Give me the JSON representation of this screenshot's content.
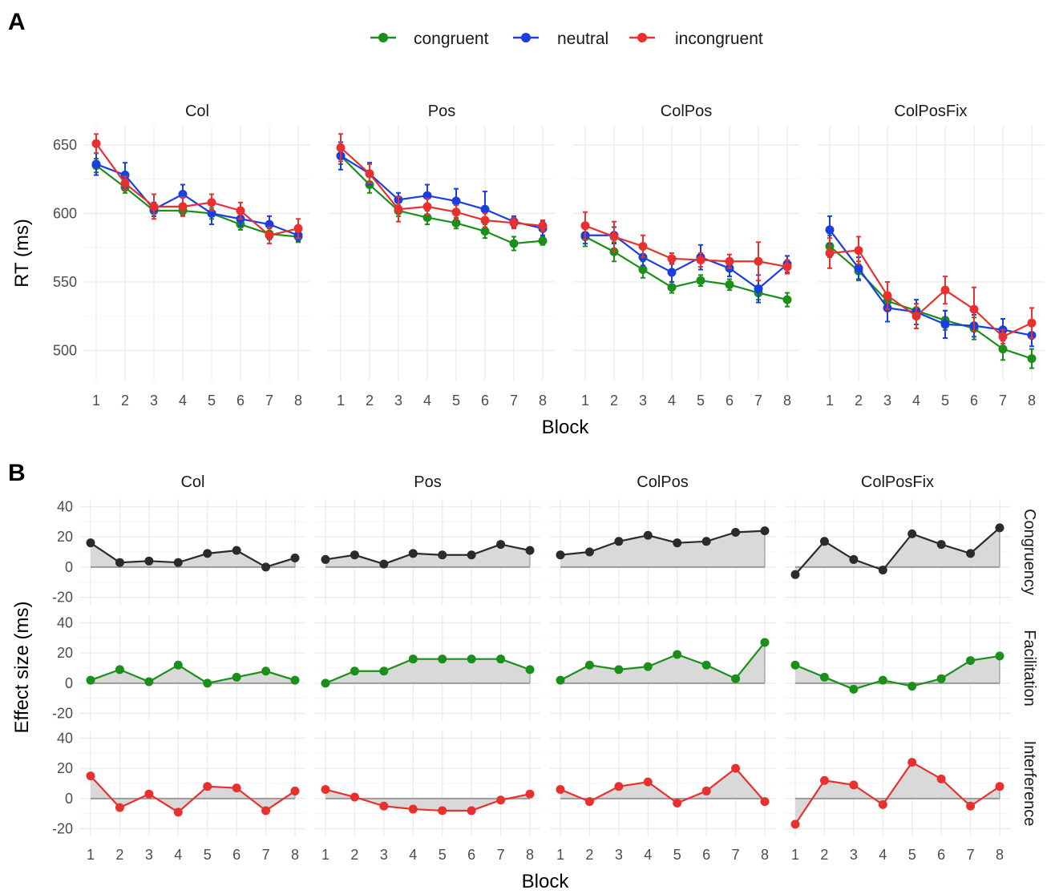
{
  "panels": {
    "a_label": "A",
    "b_label": "B"
  },
  "legend": [
    {
      "label": "congruent",
      "color": "#1a8f1a"
    },
    {
      "label": "neutral",
      "color": "#1a3fe0"
    },
    {
      "label": "incongruent",
      "color": "#e8312f"
    }
  ],
  "chart_data": [
    {
      "id": "A",
      "type": "line",
      "xlabel": "Block",
      "ylabel": "RT (ms)",
      "ylim": [
        478,
        664
      ],
      "yticks": [
        500,
        550,
        600,
        650
      ],
      "x": [
        1,
        2,
        3,
        4,
        5,
        6,
        7,
        8
      ],
      "facets": [
        "Col",
        "Pos",
        "ColPos",
        "ColPosFix"
      ],
      "grid": true,
      "legend_position": "top",
      "error_bars": true,
      "data": {
        "Col": {
          "congruent": {
            "values": [
              635,
              619,
              602,
              602,
              600,
              592,
              585,
              583
            ],
            "err": [
              5,
              4,
              4,
              3,
              4,
              4,
              4,
              4
            ]
          },
          "neutral": {
            "values": [
              636,
              628,
              603,
              614,
              600,
              596,
              592,
              584
            ],
            "err": [
              8,
              9,
              5,
              7,
              8,
              5,
              6,
              4
            ]
          },
          "incongruent": {
            "values": [
              651,
              622,
              605,
              605,
              608,
              602,
              584,
              589
            ],
            "err": [
              7,
              5,
              9,
              7,
              6,
              6,
              6,
              7
            ]
          }
        },
        "Pos": {
          "congruent": {
            "values": [
              642,
              621,
              602,
              597,
              593,
              587,
              578,
              580
            ],
            "err": [
              6,
              6,
              4,
              5,
              4,
              5,
              5,
              3
            ]
          },
          "neutral": {
            "values": [
              642,
              629,
              610,
              613,
              609,
              603,
              594,
              589
            ],
            "err": [
              10,
              8,
              5,
              8,
              9,
              13,
              4,
              5
            ]
          },
          "incongruent": {
            "values": [
              648,
              629,
              603,
              605,
              601,
              595,
              593,
              591
            ],
            "err": [
              10,
              7,
              9,
              6,
              5,
              5,
              4,
              4
            ]
          }
        },
        "ColPos": {
          "congruent": {
            "values": [
              583,
              572,
              559,
              546,
              551,
              548,
              542,
              537
            ],
            "err": [
              7,
              7,
              6,
              4,
              4,
              4,
              5,
              5
            ]
          },
          "neutral": {
            "values": [
              584,
              584,
              568,
              557,
              568,
              560,
              545,
              563
            ],
            "err": [
              6,
              6,
              6,
              7,
              9,
              6,
              10,
              6
            ]
          },
          "incongruent": {
            "values": [
              591,
              583,
              576,
              567,
              566,
              565,
              565,
              561
            ],
            "err": [
              10,
              11,
              8,
              4,
              5,
              5,
              14,
              5
            ]
          }
        },
        "ColPosFix": {
          "congruent": {
            "values": [
              576,
              558,
              536,
              529,
              522,
              516,
              501,
              494
            ],
            "err": [
              8,
              7,
              6,
              5,
              7,
              8,
              8,
              7
            ]
          },
          "neutral": {
            "values": [
              588,
              560,
              531,
              528,
              519,
              518,
              515,
              511
            ],
            "err": [
              10,
              8,
              10,
              9,
              10,
              8,
              8,
              8
            ]
          },
          "incongruent": {
            "values": [
              571,
              573,
              540,
              525,
              544,
              530,
              510,
              520
            ],
            "err": [
              11,
              10,
              10,
              9,
              10,
              16,
              5,
              11
            ]
          }
        }
      }
    },
    {
      "id": "B",
      "type": "area",
      "xlabel": "Block",
      "ylabel": "Effect size (ms)",
      "ylim": [
        -25,
        45
      ],
      "yticks": [
        -20,
        0,
        20,
        40
      ],
      "x": [
        1,
        2,
        3,
        4,
        5,
        6,
        7,
        8
      ],
      "facets": [
        "Col",
        "Pos",
        "ColPos",
        "ColPosFix"
      ],
      "rows": [
        "Congruency",
        "Facilitation",
        "Interference"
      ],
      "row_colors": {
        "Congruency": "#2b2b2b",
        "Facilitation": "#1a8f1a",
        "Interference": "#e8312f"
      },
      "area_fill": "#d9d9d9",
      "grid": true,
      "data": {
        "Congruency": {
          "Col": [
            16,
            3,
            4,
            3,
            9,
            11,
            0,
            6
          ],
          "Pos": [
            5,
            8,
            2,
            9,
            8,
            8,
            15,
            11
          ],
          "ColPos": [
            8,
            10,
            17,
            21,
            16,
            17,
            23,
            24
          ],
          "ColPosFix": [
            -5,
            17,
            5,
            -2,
            22,
            15,
            9,
            26
          ]
        },
        "Facilitation": {
          "Col": [
            2,
            9,
            1,
            12,
            0,
            4,
            8,
            2
          ],
          "Pos": [
            0,
            8,
            8,
            16,
            16,
            16,
            16,
            9
          ],
          "ColPos": [
            2,
            12,
            9,
            11,
            19,
            12,
            3,
            27
          ],
          "ColPosFix": [
            12,
            4,
            -4,
            2,
            -2,
            3,
            15,
            18
          ]
        },
        "Interference": {
          "Col": [
            15,
            -6,
            3,
            -9,
            8,
            7,
            -8,
            5
          ],
          "Pos": [
            6,
            1,
            -5,
            -7,
            -8,
            -8,
            -1,
            3
          ],
          "ColPos": [
            6,
            -2,
            8,
            11,
            -3,
            5,
            20,
            -2
          ],
          "ColPosFix": [
            -17,
            12,
            9,
            -4,
            24,
            13,
            -5,
            8
          ]
        }
      }
    }
  ]
}
